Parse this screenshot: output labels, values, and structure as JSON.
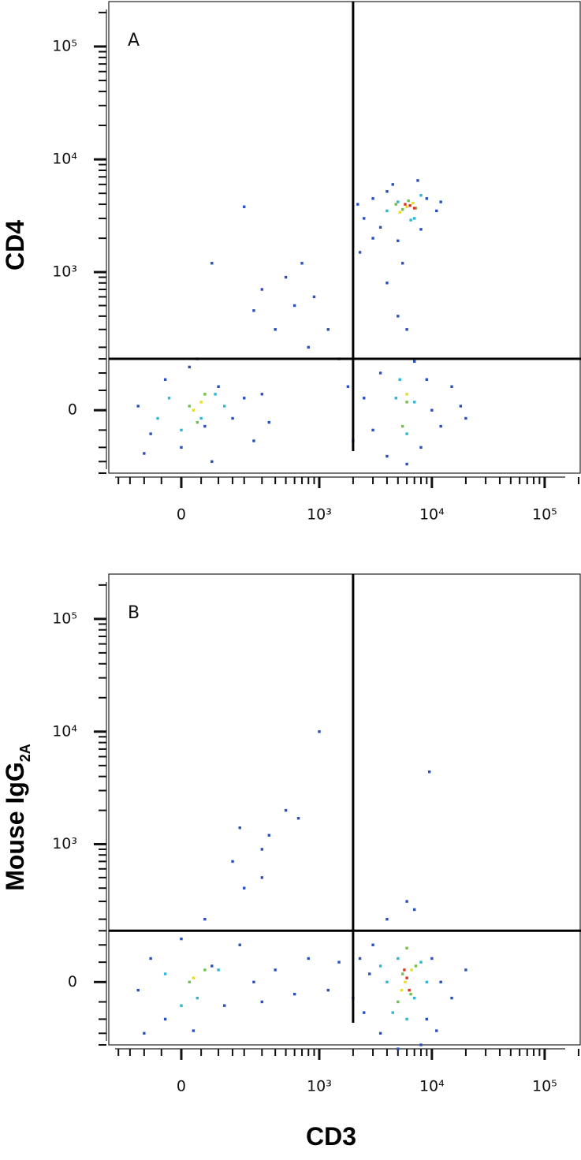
{
  "chart_data": [
    {
      "type": "scatter",
      "panel_label": "A",
      "ylabel": "CD4",
      "xscale": "biexponential",
      "yscale": "biexponential",
      "xlim": [
        -250,
        210000
      ],
      "ylim": [
        -200,
        250000
      ],
      "xticks": [
        {
          "value": 0,
          "label": "0"
        },
        {
          "value": 1000,
          "label": "10³"
        },
        {
          "value": 10000,
          "label": "10⁴"
        },
        {
          "value": 100000,
          "label": "10⁵"
        }
      ],
      "yticks": [
        {
          "value": 0,
          "label": "0"
        },
        {
          "value": 1000,
          "label": "10³"
        },
        {
          "value": 10000,
          "label": "10⁴"
        },
        {
          "value": 100000,
          "label": "10⁵"
        }
      ],
      "xminorticks": [
        -200,
        -150,
        -100,
        -50,
        50,
        100,
        150,
        200,
        300,
        400,
        500,
        600,
        700,
        800,
        900,
        2000,
        3000,
        4000,
        5000,
        6000,
        7000,
        8000,
        9000,
        20000,
        30000,
        40000,
        50000,
        60000,
        70000,
        80000,
        90000,
        200000
      ],
      "yminorticks": [
        -200,
        -150,
        -100,
        -50,
        50,
        100,
        150,
        200,
        300,
        400,
        500,
        600,
        700,
        800,
        900,
        2000,
        3000,
        4000,
        5000,
        6000,
        7000,
        8000,
        9000,
        20000,
        30000,
        40000,
        50000,
        60000,
        70000,
        80000,
        90000,
        200000
      ],
      "xgate": 2000,
      "ygate": 150,
      "series": [
        {
          "color": "#2a4fbf",
          "x": [
            -120,
            -80,
            -40,
            0,
            20,
            60,
            100,
            150,
            200,
            250,
            -100,
            80,
            40,
            300,
            350,
            400,
            600,
            800,
            500,
            300,
            700,
            250,
            900,
            1200,
            1500,
            2500,
            3000,
            3500,
            4000,
            9000,
            11000,
            12000,
            8000,
            5000,
            4500,
            7500,
            3000,
            2200,
            3000,
            3500,
            4000,
            8000,
            9000,
            10000,
            12000,
            2500,
            6000,
            7000,
            15000,
            20000,
            18000,
            4000,
            5500,
            6000,
            2000,
            1800,
            2300,
            200,
            80,
            5000
          ],
          "y": [
            10,
            -60,
            80,
            -100,
            120,
            -40,
            60,
            -20,
            30,
            -80,
            -120,
            -150,
            150,
            40,
            -30,
            300,
            500,
            200,
            900,
            700,
            1200,
            450,
            600,
            300,
            150,
            3000,
            4500,
            2500,
            5200,
            4500,
            3500,
            4200,
            2400,
            1900,
            6000,
            6500,
            2000,
            4000,
            -50,
            100,
            -130,
            -100,
            80,
            0,
            -40,
            30,
            -160,
            140,
            60,
            -20,
            10,
            800,
            1200,
            300,
            -80,
            60,
            1500,
            3800,
            1200,
            400
          ]
        },
        {
          "color": "#2fb5d6",
          "x": [
            -30,
            50,
            90,
            0,
            120,
            4000,
            5000,
            7000,
            8000,
            6500,
            4800,
            6000,
            5200,
            7000,
            -60
          ],
          "y": [
            30,
            -20,
            40,
            -50,
            10,
            3500,
            4200,
            3000,
            4800,
            2900,
            30,
            -60,
            80,
            20,
            -20
          ]
        },
        {
          "color": "#6cc24a",
          "x": [
            20,
            60,
            40,
            5500,
            6200,
            7200,
            4800,
            6000,
            5500
          ],
          "y": [
            10,
            40,
            -30,
            3600,
            4300,
            3700,
            4000,
            20,
            -40
          ]
        },
        {
          "color": "#e6dc2a",
          "x": [
            30,
            50,
            6000,
            6800,
            5200,
            6000
          ],
          "y": [
            0,
            20,
            3800,
            4100,
            3400,
            40
          ]
        },
        {
          "color": "#e0321f",
          "x": [
            6400,
            7000,
            5800
          ],
          "y": [
            3900,
            3700,
            4000
          ]
        }
      ]
    },
    {
      "type": "scatter",
      "panel_label": "B",
      "ylabel": "Mouse IgG",
      "ylabel_subscript": "2A",
      "xlabel": "CD3",
      "xscale": "biexponential",
      "yscale": "biexponential",
      "xlim": [
        -250,
        210000
      ],
      "ylim": [
        -200,
        250000
      ],
      "xticks": [
        {
          "value": 0,
          "label": "0"
        },
        {
          "value": 1000,
          "label": "10³"
        },
        {
          "value": 10000,
          "label": "10⁴"
        },
        {
          "value": 100000,
          "label": "10⁵"
        }
      ],
      "yticks": [
        {
          "value": 0,
          "label": "0"
        },
        {
          "value": 1000,
          "label": "10³"
        },
        {
          "value": 10000,
          "label": "10⁴"
        },
        {
          "value": 100000,
          "label": "10⁵"
        }
      ],
      "xminorticks": [
        -200,
        -150,
        -100,
        -50,
        50,
        100,
        150,
        200,
        300,
        400,
        500,
        600,
        700,
        800,
        900,
        2000,
        3000,
        4000,
        5000,
        6000,
        7000,
        8000,
        9000,
        20000,
        30000,
        40000,
        50000,
        60000,
        70000,
        80000,
        90000,
        200000
      ],
      "yminorticks": [
        -200,
        -150,
        -100,
        -50,
        50,
        100,
        150,
        200,
        300,
        400,
        500,
        600,
        700,
        800,
        900,
        2000,
        3000,
        4000,
        5000,
        6000,
        7000,
        8000,
        9000,
        20000,
        30000,
        40000,
        50000,
        60000,
        70000,
        80000,
        90000,
        200000
      ],
      "xgate": 2000,
      "ygate": 150,
      "series": [
        {
          "color": "#2a4fbf",
          "x": [
            -120,
            -80,
            -40,
            0,
            30,
            80,
            120,
            180,
            250,
            300,
            -100,
            60,
            400,
            600,
            800,
            1200,
            1500,
            2000,
            200,
            300,
            350,
            180,
            1000,
            9500,
            500,
            650,
            2500,
            3000,
            3500,
            9000,
            10000,
            12000,
            15000,
            20000,
            4000,
            6000,
            8000,
            2800,
            5000,
            7000,
            11000,
            2300,
            300,
            150
          ],
          "y": [
            -20,
            60,
            -100,
            120,
            -140,
            40,
            -60,
            100,
            0,
            -50,
            -150,
            200,
            30,
            -30,
            60,
            -20,
            50,
            -40,
            400,
            900,
            1200,
            1400,
            10000,
            4400,
            2000,
            1700,
            -80,
            100,
            -150,
            -100,
            60,
            0,
            -40,
            30,
            200,
            300,
            -200,
            20,
            -220,
            250,
            -140,
            60,
            500,
            700
          ]
        },
        {
          "color": "#2fb5d6",
          "x": [
            -40,
            40,
            100,
            0,
            4000,
            5000,
            7000,
            8000,
            6000,
            4500,
            9000,
            3500
          ],
          "y": [
            20,
            -40,
            30,
            -60,
            0,
            60,
            -40,
            50,
            -100,
            -80,
            0,
            40
          ]
        },
        {
          "color": "#6cc24a",
          "x": [
            20,
            60,
            5500,
            6500,
            7200,
            5000,
            6000
          ],
          "y": [
            0,
            30,
            20,
            -30,
            40,
            -50,
            90
          ]
        },
        {
          "color": "#e6dc2a",
          "x": [
            30,
            5800,
            6600,
            5400
          ],
          "y": [
            10,
            0,
            30,
            -20
          ]
        },
        {
          "color": "#e0321f",
          "x": [
            6000,
            6300,
            5700
          ],
          "y": [
            10,
            -20,
            30
          ]
        }
      ]
    }
  ]
}
